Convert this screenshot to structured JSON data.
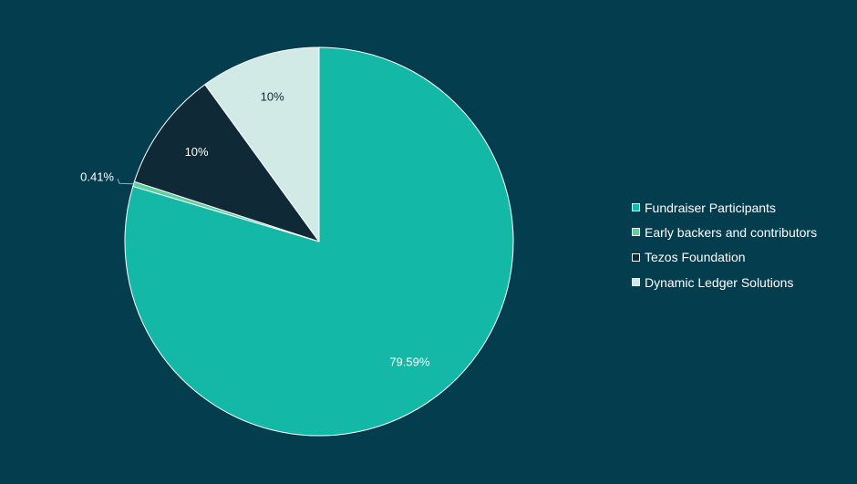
{
  "colors": {
    "background": "#033d4e",
    "slice_border": "#ffffff",
    "legend_text": "#ffffff"
  },
  "chart_data": {
    "type": "pie",
    "categories": [
      "Fundraiser Participants",
      "Early backers and contributors",
      "Tezos Foundation",
      "Dynamic Ledger Solutions"
    ],
    "values": [
      79.59,
      0.41,
      10,
      10
    ],
    "data_labels": [
      "79.59%",
      "0.41%",
      "10%",
      "10%"
    ],
    "colors": [
      "#13b8a7",
      "#5fcf9d",
      "#0f2937",
      "#d2eae6"
    ],
    "label_colors": [
      "#ffffff",
      "#ffffff",
      "#ffffff",
      "#0f2937"
    ],
    "start_angle_deg": 0,
    "direction": "clockwise",
    "legend_position": "right"
  }
}
